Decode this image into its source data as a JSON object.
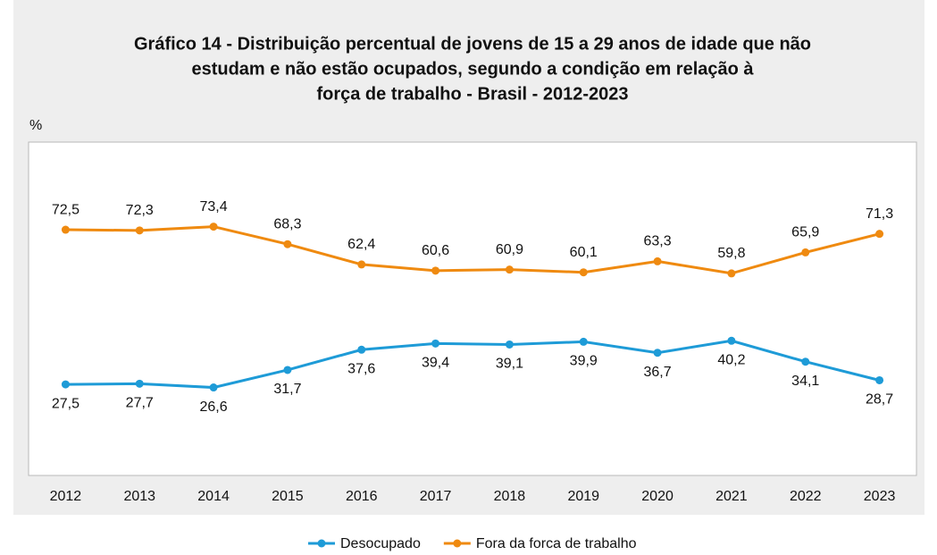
{
  "chart_data": {
    "type": "line",
    "title": [
      "Gráfico 14 - Distribuição percentual de jovens de 15 a 29 anos de idade que não",
      "estudam e não estão ocupados, segundo a condição em relação à",
      "força de trabalho - Brasil - 2012-2023"
    ],
    "y_label": "%",
    "categories": [
      "2012",
      "2013",
      "2014",
      "2015",
      "2016",
      "2017",
      "2018",
      "2019",
      "2020",
      "2021",
      "2022",
      "2023"
    ],
    "series": [
      {
        "name": "Desocupado",
        "color": "#1e9bd7",
        "values": [
          27.5,
          27.7,
          26.6,
          31.7,
          37.6,
          39.4,
          39.1,
          39.9,
          36.7,
          40.2,
          34.1,
          28.7
        ],
        "value_labels": [
          "27,5",
          "27,7",
          "26,6",
          "31,7",
          "37,6",
          "39,4",
          "39,1",
          "39,9",
          "36,7",
          "40,2",
          "34,1",
          "28,7"
        ]
      },
      {
        "name": "Fora da forca de trabalho",
        "color": "#ef8a10",
        "values": [
          72.5,
          72.3,
          73.4,
          68.3,
          62.4,
          60.6,
          60.9,
          60.1,
          63.3,
          59.8,
          65.9,
          71.3
        ],
        "value_labels": [
          "72,5",
          "72,3",
          "73,4",
          "68,3",
          "62,4",
          "60,6",
          "60,9",
          "60,1",
          "63,3",
          "59,8",
          "65,9",
          "71,3"
        ]
      }
    ],
    "ylim": [
      1,
      98
    ],
    "grid": false,
    "legend": "bottom"
  }
}
